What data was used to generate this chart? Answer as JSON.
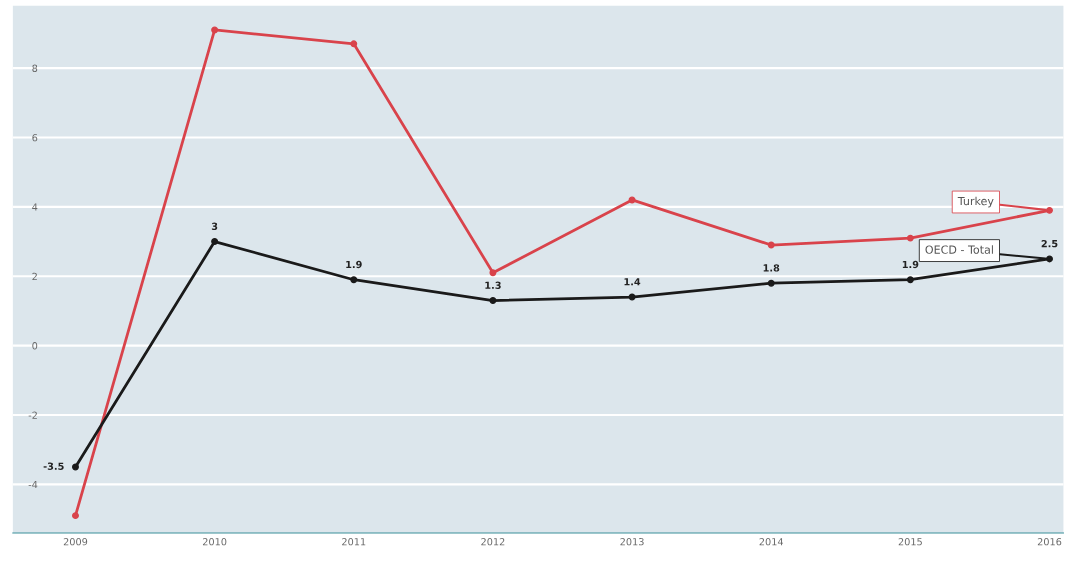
{
  "chart_data": {
    "type": "line",
    "categories": [
      "2009",
      "2010",
      "2011",
      "2012",
      "2013",
      "2014",
      "2015",
      "2016"
    ],
    "series": [
      {
        "name": "Turkey",
        "color": "#d9434b",
        "values": [
          -4.9,
          9.1,
          8.7,
          2.1,
          4.2,
          2.9,
          3.1,
          3.9
        ]
      },
      {
        "name": "OECD - Total",
        "color": "#1a1a1a",
        "values": [
          -3.5,
          3,
          1.9,
          1.3,
          1.4,
          1.8,
          1.9,
          2.5
        ],
        "value_labels": [
          "-3.5",
          "3",
          "1.9",
          "1.3",
          "1.4",
          "1.8",
          "1.9",
          "2.5"
        ]
      }
    ],
    "ylim": [
      -5.4,
      9.8
    ],
    "yticks": [
      -4,
      -2,
      0,
      2,
      4,
      6,
      8
    ],
    "grid": "y",
    "marker": "circle",
    "line_style": "solid",
    "legend": "right"
  }
}
